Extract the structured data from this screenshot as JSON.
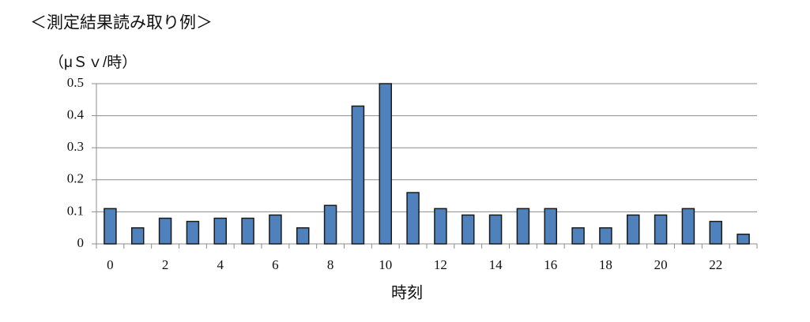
{
  "chart_data": {
    "type": "bar",
    "title": "＜測定結果読み取り例＞",
    "y_label": "（μＳｖ/時）",
    "x_label": "時刻",
    "categories": [
      "0",
      null,
      "2",
      null,
      "4",
      null,
      "6",
      null,
      "8",
      null,
      "10",
      null,
      "12",
      null,
      "14",
      null,
      "16",
      null,
      "18",
      null,
      "20",
      null,
      "22",
      null
    ],
    "values": [
      0.11,
      0.05,
      0.08,
      0.07,
      0.08,
      0.08,
      0.09,
      0.05,
      0.12,
      0.43,
      0.5,
      0.16,
      0.11,
      0.09,
      0.09,
      0.11,
      0.11,
      0.05,
      0.05,
      0.09,
      0.09,
      0.11,
      0.07,
      0.03
    ],
    "color": "#4f81bd",
    "ylim": [
      0,
      0.5
    ],
    "yticks": [
      0,
      0.1,
      0.2,
      0.3,
      0.4,
      0.5
    ],
    "grid": true
  }
}
